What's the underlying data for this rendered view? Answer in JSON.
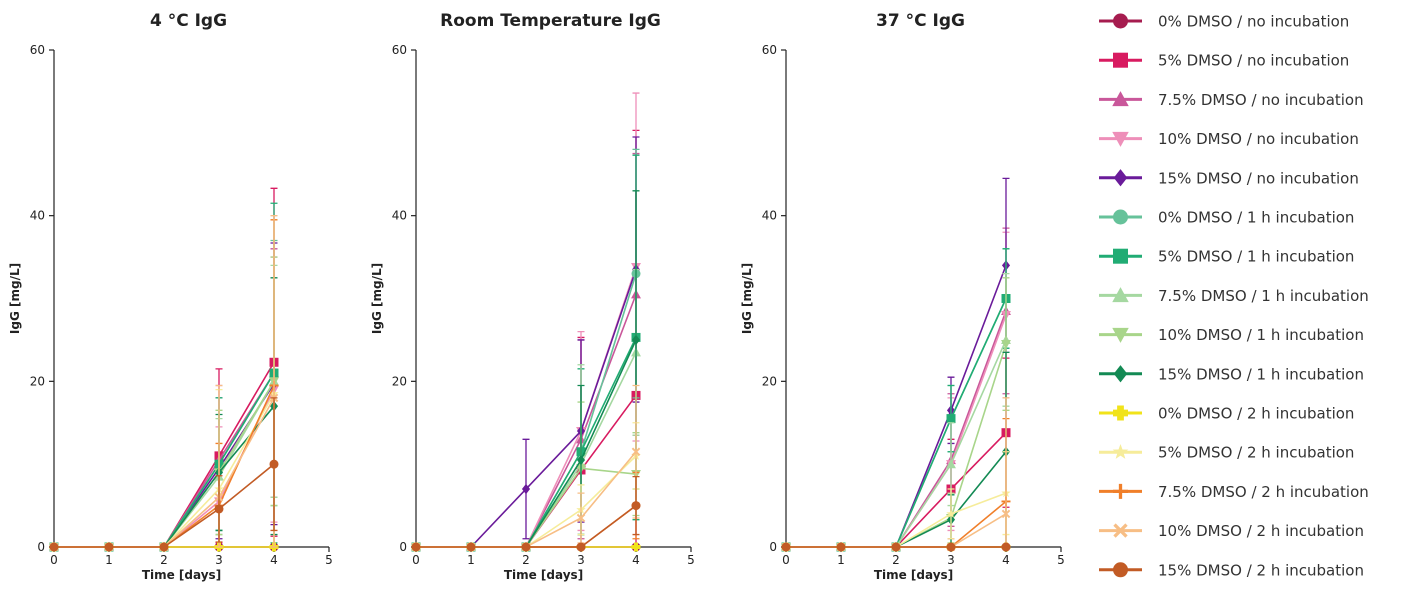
{
  "chart_data": [
    {
      "type": "line",
      "title": "4 °C IgG",
      "xlabel": "Time [days]",
      "ylabel": "IgG [mg/L]",
      "xlim": [
        0,
        5
      ],
      "ylim": [
        0,
        60
      ],
      "xticks": [
        "0",
        "1",
        "2",
        "3",
        "4",
        "5"
      ],
      "yticks": [
        "0",
        "20",
        "40",
        "60"
      ],
      "x": [
        0,
        1,
        2,
        3,
        4
      ],
      "series": [
        {
          "name": "0% DMSO / no incubation",
          "values": [
            0,
            0,
            0,
            0,
            0
          ],
          "err": [
            0,
            0,
            0,
            0,
            0
          ]
        },
        {
          "name": "5% DMSO / no incubation",
          "values": [
            0,
            0,
            0,
            11,
            22.3
          ],
          "err": [
            0,
            0,
            0,
            10.5,
            21
          ]
        },
        {
          "name": "7.5% DMSO / no incubation",
          "values": [
            0,
            0,
            0,
            10.5,
            21
          ],
          "err": [
            0,
            0,
            0,
            9,
            15
          ]
        },
        {
          "name": "10% DMSO / no incubation",
          "values": [
            0,
            0,
            0,
            5.5,
            19
          ],
          "err": [
            0,
            0,
            0,
            9,
            16
          ]
        },
        {
          "name": "15% DMSO / no incubation",
          "values": [
            0,
            0,
            0,
            9.5,
            19.7
          ],
          "err": [
            0,
            0,
            0,
            8.5,
            17
          ]
        },
        {
          "name": "0% DMSO / 1 h incubation",
          "values": [
            0,
            0,
            0,
            10,
            21
          ],
          "err": [
            0,
            0,
            0,
            8,
            16
          ]
        },
        {
          "name": "5% DMSO / 1 h incubation",
          "values": [
            0,
            0,
            0,
            10,
            21
          ],
          "err": [
            0,
            0,
            0,
            8,
            20.5
          ]
        },
        {
          "name": "7.5% DMSO / 1 h incubation",
          "values": [
            0,
            0,
            0,
            8.5,
            20
          ],
          "err": [
            0,
            0,
            0,
            7,
            14
          ]
        },
        {
          "name": "10% DMSO / 1 h incubation",
          "values": [
            0,
            0,
            0,
            9,
            20
          ],
          "err": [
            0,
            0,
            0,
            7.5,
            15
          ]
        },
        {
          "name": "15% DMSO / 1 h incubation",
          "values": [
            0,
            0,
            0,
            9,
            17
          ],
          "err": [
            0,
            0,
            0,
            7,
            15.5
          ]
        },
        {
          "name": "0% DMSO / 2 h incubation",
          "values": [
            0,
            0,
            0,
            0,
            0
          ],
          "err": [
            0,
            0,
            0,
            0,
            0
          ]
        },
        {
          "name": "5% DMSO / 2 h incubation",
          "values": [
            0,
            0,
            0,
            7,
            18.5
          ],
          "err": [
            0,
            0,
            0,
            12,
            21
          ]
        },
        {
          "name": "7.5% DMSO / 2 h incubation",
          "values": [
            0,
            0,
            0,
            5,
            19.5
          ],
          "err": [
            0,
            0,
            0,
            7.5,
            20
          ]
        },
        {
          "name": "10% DMSO / 2 h incubation",
          "values": [
            0,
            0,
            0,
            6,
            18
          ],
          "err": [
            0,
            0,
            0,
            13.5,
            22
          ]
        },
        {
          "name": "15% DMSO / 2 h incubation",
          "values": [
            0,
            0,
            0,
            4.6,
            10
          ],
          "err": [
            0,
            0,
            0,
            4,
            8
          ]
        }
      ]
    },
    {
      "type": "line",
      "title": "Room Temperature IgG",
      "xlabel": "Time [days]",
      "ylabel": "IgG [mg/L]",
      "xlim": [
        0,
        5
      ],
      "ylim": [
        0,
        60
      ],
      "xticks": [
        "0",
        "1",
        "2",
        "3",
        "4",
        "5"
      ],
      "yticks": [
        "0",
        "20",
        "40",
        "60"
      ],
      "x": [
        0,
        1,
        2,
        3,
        4
      ],
      "series": [
        {
          "name": "0% DMSO / no incubation",
          "values": [
            0,
            0,
            0,
            0,
            0
          ],
          "err": [
            0,
            0,
            0,
            0,
            0
          ]
        },
        {
          "name": "5% DMSO / no incubation",
          "values": [
            0,
            0,
            0,
            9.3,
            18.3
          ],
          "err": [
            0,
            0,
            0,
            16,
            32
          ]
        },
        {
          "name": "7.5% DMSO / no incubation",
          "values": [
            0,
            0,
            0,
            13,
            30.5
          ],
          "err": [
            0,
            0,
            0,
            12,
            17
          ]
        },
        {
          "name": "10% DMSO / no incubation",
          "values": [
            0,
            0,
            0,
            14,
            33.8
          ],
          "err": [
            0,
            0,
            0,
            12,
            21
          ]
        },
        {
          "name": "15% DMSO / no incubation",
          "values": [
            0,
            0,
            7,
            14,
            33.5
          ],
          "err": [
            0,
            0,
            6,
            11,
            16
          ]
        },
        {
          "name": "0% DMSO / 1 h incubation",
          "values": [
            0,
            0,
            0,
            11.5,
            33
          ],
          "err": [
            0,
            0,
            0,
            10,
            15
          ]
        },
        {
          "name": "5% DMSO / 1 h incubation",
          "values": [
            0,
            0,
            0,
            11.5,
            25.3
          ],
          "err": [
            0,
            0,
            0,
            10,
            22
          ]
        },
        {
          "name": "7.5% DMSO / 1 h incubation",
          "values": [
            0,
            0,
            0,
            10,
            23.5
          ],
          "err": [
            0,
            0,
            0,
            12,
            10
          ]
        },
        {
          "name": "10% DMSO / 1 h incubation",
          "values": [
            0,
            0,
            0,
            9.5,
            8.8
          ],
          "err": [
            0,
            0,
            0,
            8,
            5
          ]
        },
        {
          "name": "15% DMSO / 1 h incubation",
          "values": [
            0,
            0,
            0,
            10.5,
            25
          ],
          "err": [
            0,
            0,
            0,
            9,
            18
          ]
        },
        {
          "name": "0% DMSO / 2 h incubation",
          "values": [
            0,
            0,
            0,
            0,
            0
          ],
          "err": [
            0,
            0,
            0,
            0,
            0
          ]
        },
        {
          "name": "5% DMSO / 2 h incubation",
          "values": [
            0,
            0,
            0,
            4.5,
            11
          ],
          "err": [
            0,
            0,
            0,
            3,
            4
          ]
        },
        {
          "name": "7.5% DMSO / 2 h incubation",
          "values": [
            0,
            0,
            0,
            0,
            5
          ],
          "err": [
            0,
            0,
            0,
            0,
            4
          ]
        },
        {
          "name": "10% DMSO / 2 h incubation",
          "values": [
            0,
            0,
            0,
            3.5,
            11.5
          ],
          "err": [
            0,
            0,
            0,
            3,
            8
          ]
        },
        {
          "name": "15% DMSO / 2 h incubation",
          "values": [
            0,
            0,
            0,
            0,
            5
          ],
          "err": [
            0,
            0,
            0,
            0,
            3.5
          ]
        }
      ]
    },
    {
      "type": "line",
      "title": "37 °C IgG",
      "xlabel": "Time [days]",
      "ylabel": "IgG [mg/L]",
      "xlim": [
        0,
        5
      ],
      "ylim": [
        0,
        60
      ],
      "xticks": [
        "0",
        "1",
        "2",
        "3",
        "4",
        "5"
      ],
      "yticks": [
        "0",
        "20",
        "40",
        "60"
      ],
      "x": [
        0,
        1,
        2,
        3,
        4
      ],
      "series": [
        {
          "name": "0% DMSO / no incubation",
          "values": [
            0,
            0,
            0,
            0,
            0
          ],
          "err": [
            0,
            0,
            0,
            0,
            0
          ]
        },
        {
          "name": "5% DMSO / no incubation",
          "values": [
            0,
            0,
            0,
            7,
            13.8
          ],
          "err": [
            0,
            0,
            0,
            6,
            9
          ]
        },
        {
          "name": "7.5% DMSO / no incubation",
          "values": [
            0,
            0,
            0,
            10.5,
            28.5
          ],
          "err": [
            0,
            0,
            0,
            8,
            10
          ]
        },
        {
          "name": "10% DMSO / no incubation",
          "values": [
            0,
            0,
            0,
            10,
            28
          ],
          "err": [
            0,
            0,
            0,
            8,
            10
          ]
        },
        {
          "name": "15% DMSO / no incubation",
          "values": [
            0,
            0,
            0,
            16.5,
            34
          ],
          "err": [
            0,
            0,
            0,
            4,
            10.5
          ]
        },
        {
          "name": "0% DMSO / 1 h incubation",
          "values": [
            0,
            0,
            0,
            15.5,
            30
          ],
          "err": [
            0,
            0,
            0,
            4,
            6
          ]
        },
        {
          "name": "5% DMSO / 1 h incubation",
          "values": [
            0,
            0,
            0,
            15.5,
            30
          ],
          "err": [
            0,
            0,
            0,
            4,
            6
          ]
        },
        {
          "name": "7.5% DMSO / 1 h incubation",
          "values": [
            0,
            0,
            0,
            10,
            25
          ],
          "err": [
            0,
            0,
            0,
            5,
            8
          ]
        },
        {
          "name": "10% DMSO / 1 h incubation",
          "values": [
            0,
            0,
            0,
            3.5,
            24.5
          ],
          "err": [
            0,
            0,
            0,
            3,
            8
          ]
        },
        {
          "name": "15% DMSO / 1 h incubation",
          "values": [
            0,
            0,
            0,
            3.3,
            11.5
          ],
          "err": [
            0,
            0,
            0,
            3,
            12
          ]
        },
        {
          "name": "0% DMSO / 2 h incubation",
          "values": [
            0,
            0,
            0,
            0,
            0
          ],
          "err": [
            0,
            0,
            0,
            0,
            0
          ]
        },
        {
          "name": "5% DMSO / 2 h incubation",
          "values": [
            0,
            0,
            0,
            4,
            6.5
          ],
          "err": [
            0,
            0,
            0,
            3,
            5
          ]
        },
        {
          "name": "7.5% DMSO / 2 h incubation",
          "values": [
            0,
            0,
            0,
            0,
            5.5
          ],
          "err": [
            0,
            0,
            0,
            0,
            10
          ]
        },
        {
          "name": "10% DMSO / 2 h incubation",
          "values": [
            0,
            0,
            0,
            0,
            4
          ],
          "err": [
            0,
            0,
            0,
            0,
            14
          ]
        },
        {
          "name": "15% DMSO / 2 h incubation",
          "values": [
            0,
            0,
            0,
            0,
            0
          ],
          "err": [
            0,
            0,
            0,
            0,
            0
          ]
        }
      ]
    }
  ],
  "legend": {
    "placement": "right",
    "items": [
      {
        "label": "0% DMSO / no incubation",
        "color": "#A61C4F",
        "marker": "circle"
      },
      {
        "label": "5% DMSO / no incubation",
        "color": "#D81B60",
        "marker": "square"
      },
      {
        "label": "7.5% DMSO / no incubation",
        "color": "#C9579A",
        "marker": "triangle-up"
      },
      {
        "label": "10% DMSO / no incubation",
        "color": "#EE8FB9",
        "marker": "triangle-down"
      },
      {
        "label": "15% DMSO / no incubation",
        "color": "#6A1B9A",
        "marker": "diamond"
      },
      {
        "label": "0% DMSO / 1 h incubation",
        "color": "#66C29A",
        "marker": "circle"
      },
      {
        "label": "5% DMSO / 1 h incubation",
        "color": "#21AC74",
        "marker": "square"
      },
      {
        "label": "7.5% DMSO / 1 h incubation",
        "color": "#A5D8A1",
        "marker": "triangle-up"
      },
      {
        "label": "10% DMSO / 1 h incubation",
        "color": "#A8D58A",
        "marker": "triangle-down"
      },
      {
        "label": "15% DMSO / 1 h incubation",
        "color": "#138A54",
        "marker": "diamond"
      },
      {
        "label": "0% DMSO / 2 h incubation",
        "color": "#F1E31A",
        "marker": "plus-bold"
      },
      {
        "label": "5% DMSO / 2 h incubation",
        "color": "#F6EC9A",
        "marker": "star"
      },
      {
        "label": "7.5% DMSO / 2 h incubation",
        "color": "#F07F2A",
        "marker": "plus"
      },
      {
        "label": "10% DMSO / 2 h incubation",
        "color": "#F7BE85",
        "marker": "x"
      },
      {
        "label": "15% DMSO / 2 h incubation",
        "color": "#C25B25",
        "marker": "circle"
      }
    ]
  }
}
